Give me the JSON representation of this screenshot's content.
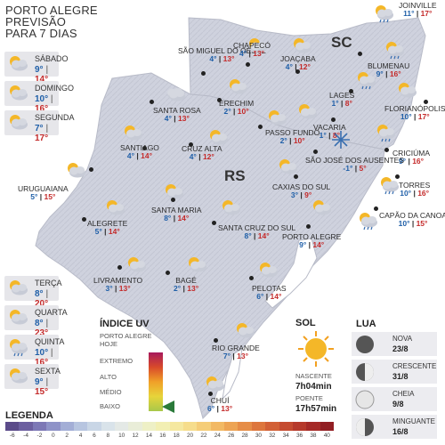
{
  "header": {
    "line1": "PORTO ALEGRE",
    "line2": "PREVISÃO",
    "line3": "PARA 7 DIAS"
  },
  "days": [
    {
      "name": "SÁBADO",
      "min": "9°",
      "max": "14°",
      "icon": "partly-cloudy-icon"
    },
    {
      "name": "DOMINGO",
      "min": "10°",
      "max": "16°",
      "icon": "partly-cloudy-icon"
    },
    {
      "name": "SEGUNDA",
      "min": "7°",
      "max": "17°",
      "icon": "partly-cloudy-icon"
    },
    {
      "name": "TERÇA",
      "min": "8°",
      "max": "20°",
      "icon": "partly-cloudy-icon"
    },
    {
      "name": "QUARTA",
      "min": "8°",
      "max": "23°",
      "icon": "partly-cloudy-icon"
    },
    {
      "name": "QUINTA",
      "min": "10°",
      "max": "16°",
      "icon": "rain-icon"
    },
    {
      "name": "SEXTA",
      "min": "9°",
      "max": "15°",
      "icon": "partly-cloudy-icon"
    }
  ],
  "states": {
    "sc": "SC",
    "rs": "RS"
  },
  "cities": [
    {
      "name": "JOINVILLE",
      "min": "11°",
      "max": "17°",
      "icon": "rain-icon"
    },
    {
      "name": "BLUMENAU",
      "min": "9°",
      "max": "16°",
      "icon": "rain-icon"
    },
    {
      "name": "FLORIANÓPOLIS",
      "min": "10°",
      "max": "17°",
      "icon": "partly-cloudy-icon"
    },
    {
      "name": "LAGES",
      "min": "1°",
      "max": "8°",
      "icon": "rain-icon"
    },
    {
      "name": "VACARIA",
      "min": "1°",
      "max": "8°",
      "icon": "partly-cloudy-icon"
    },
    {
      "name": "CRICIÚMA",
      "min": "9°",
      "max": "16°",
      "icon": "rain-icon"
    },
    {
      "name": "TORRES",
      "min": "10°",
      "max": "16°",
      "icon": "rain-icon"
    },
    {
      "name": "CAPÃO DA CANOA",
      "min": "10°",
      "max": "15°",
      "icon": "rain-icon"
    },
    {
      "name": "SÃO MIGUEL DO OESTE",
      "min": "4°",
      "max": "13°",
      "icon": "cloud-icon"
    },
    {
      "name": "CHAPECÓ",
      "min": "4°",
      "max": "13°",
      "icon": "partly-cloudy-icon"
    },
    {
      "name": "JOAÇABA",
      "min": "4°",
      "max": "12°",
      "icon": "partly-cloudy-icon"
    },
    {
      "name": "ERECHIM",
      "min": "2°",
      "max": "10°",
      "icon": "partly-cloudy-icon"
    },
    {
      "name": "SANTA ROSA",
      "min": "4°",
      "max": "13°",
      "icon": "cloud-icon"
    },
    {
      "name": "PASSO FUNDO",
      "min": "2°",
      "max": "10°",
      "icon": "partly-cloudy-icon"
    },
    {
      "name": "SÃO JOSÉ DOS AUSENTES",
      "min": "-1°",
      "max": "5°",
      "icon": "snow-icon"
    },
    {
      "name": "SANTIAGO",
      "min": "4°",
      "max": "14°",
      "icon": "partly-cloudy-icon"
    },
    {
      "name": "CRUZ ALTA",
      "min": "4°",
      "max": "12°",
      "icon": "partly-cloudy-icon"
    },
    {
      "name": "CAXIAS DO SUL",
      "min": "3°",
      "max": "9°",
      "icon": "partly-cloudy-icon"
    },
    {
      "name": "URUGUAIANA",
      "min": "5°",
      "max": "15°",
      "icon": "partly-cloudy-icon"
    },
    {
      "name": "ALEGRETE",
      "min": "5°",
      "max": "14°",
      "icon": "partly-cloudy-icon"
    },
    {
      "name": "SANTA MARIA",
      "min": "8°",
      "max": "14°",
      "icon": "partly-cloudy-icon"
    },
    {
      "name": "SANTA CRUZ DO SUL",
      "min": "8°",
      "max": "14°",
      "icon": "partly-cloudy-icon"
    },
    {
      "name": "PORTO ALEGRE",
      "min": "9°",
      "max": "14°",
      "icon": "partly-cloudy-icon"
    },
    {
      "name": "LIVRAMENTO",
      "min": "3°",
      "max": "13°",
      "icon": "partly-cloudy-icon"
    },
    {
      "name": "BAGÉ",
      "min": "2°",
      "max": "13°",
      "icon": "partly-cloudy-icon"
    },
    {
      "name": "PELOTAS",
      "min": "6°",
      "max": "14°",
      "icon": "partly-cloudy-icon"
    },
    {
      "name": "RIO GRANDE",
      "min": "7°",
      "max": "13°",
      "icon": "partly-cloudy-icon"
    },
    {
      "name": "CHUÍ",
      "min": "6°",
      "max": "13°",
      "icon": "partly-cloudy-icon"
    }
  ],
  "uv": {
    "title": "ÍNDICE UV",
    "subtitle1": "PORTO ALEGRE",
    "subtitle2": "HOJE",
    "levels": [
      "EXTREMO",
      "ALTO",
      "MÉDIO",
      "BAIXO"
    ],
    "current": "BAIXO"
  },
  "sun": {
    "title": "SOL",
    "rise_label": "NASCENTE",
    "rise": "7h04min",
    "set_label": "POENTE",
    "set": "17h57min"
  },
  "moon": {
    "title": "LUA",
    "phases": [
      {
        "name": "NOVA",
        "date": "23/8"
      },
      {
        "name": "CRESCENTE",
        "date": "31/8"
      },
      {
        "name": "CHEIA",
        "date": "9/8"
      },
      {
        "name": "MINGUANTE",
        "date": "16/8"
      }
    ]
  },
  "legend": {
    "title": "LEGENDA",
    "labels": [
      "-6",
      "-4",
      "-2",
      "0",
      "2",
      "4",
      "6",
      "8",
      "10",
      "12",
      "14",
      "16",
      "18",
      "20",
      "22",
      "24",
      "26",
      "28",
      "30",
      "32",
      "34",
      "36",
      "38",
      "40"
    ],
    "colors": [
      "#5b4b8a",
      "#6c5fa0",
      "#7d78b6",
      "#8f93c8",
      "#a3aed6",
      "#b7c5e0",
      "#c9d6e6",
      "#d9e3ea",
      "#e4e9e6",
      "#e9edd8",
      "#eef0c6",
      "#f2efb3",
      "#f5e8a0",
      "#f6dd8c",
      "#f5cd78",
      "#f2b964",
      "#eda454",
      "#e68d47",
      "#dd763d",
      "#d26036",
      "#c54b30",
      "#b6392b",
      "#a52a27",
      "#921e23"
    ]
  },
  "colors": {
    "min": "#1f5fa8",
    "max": "#c42a2a",
    "uv_current": "#2a7a3a"
  }
}
